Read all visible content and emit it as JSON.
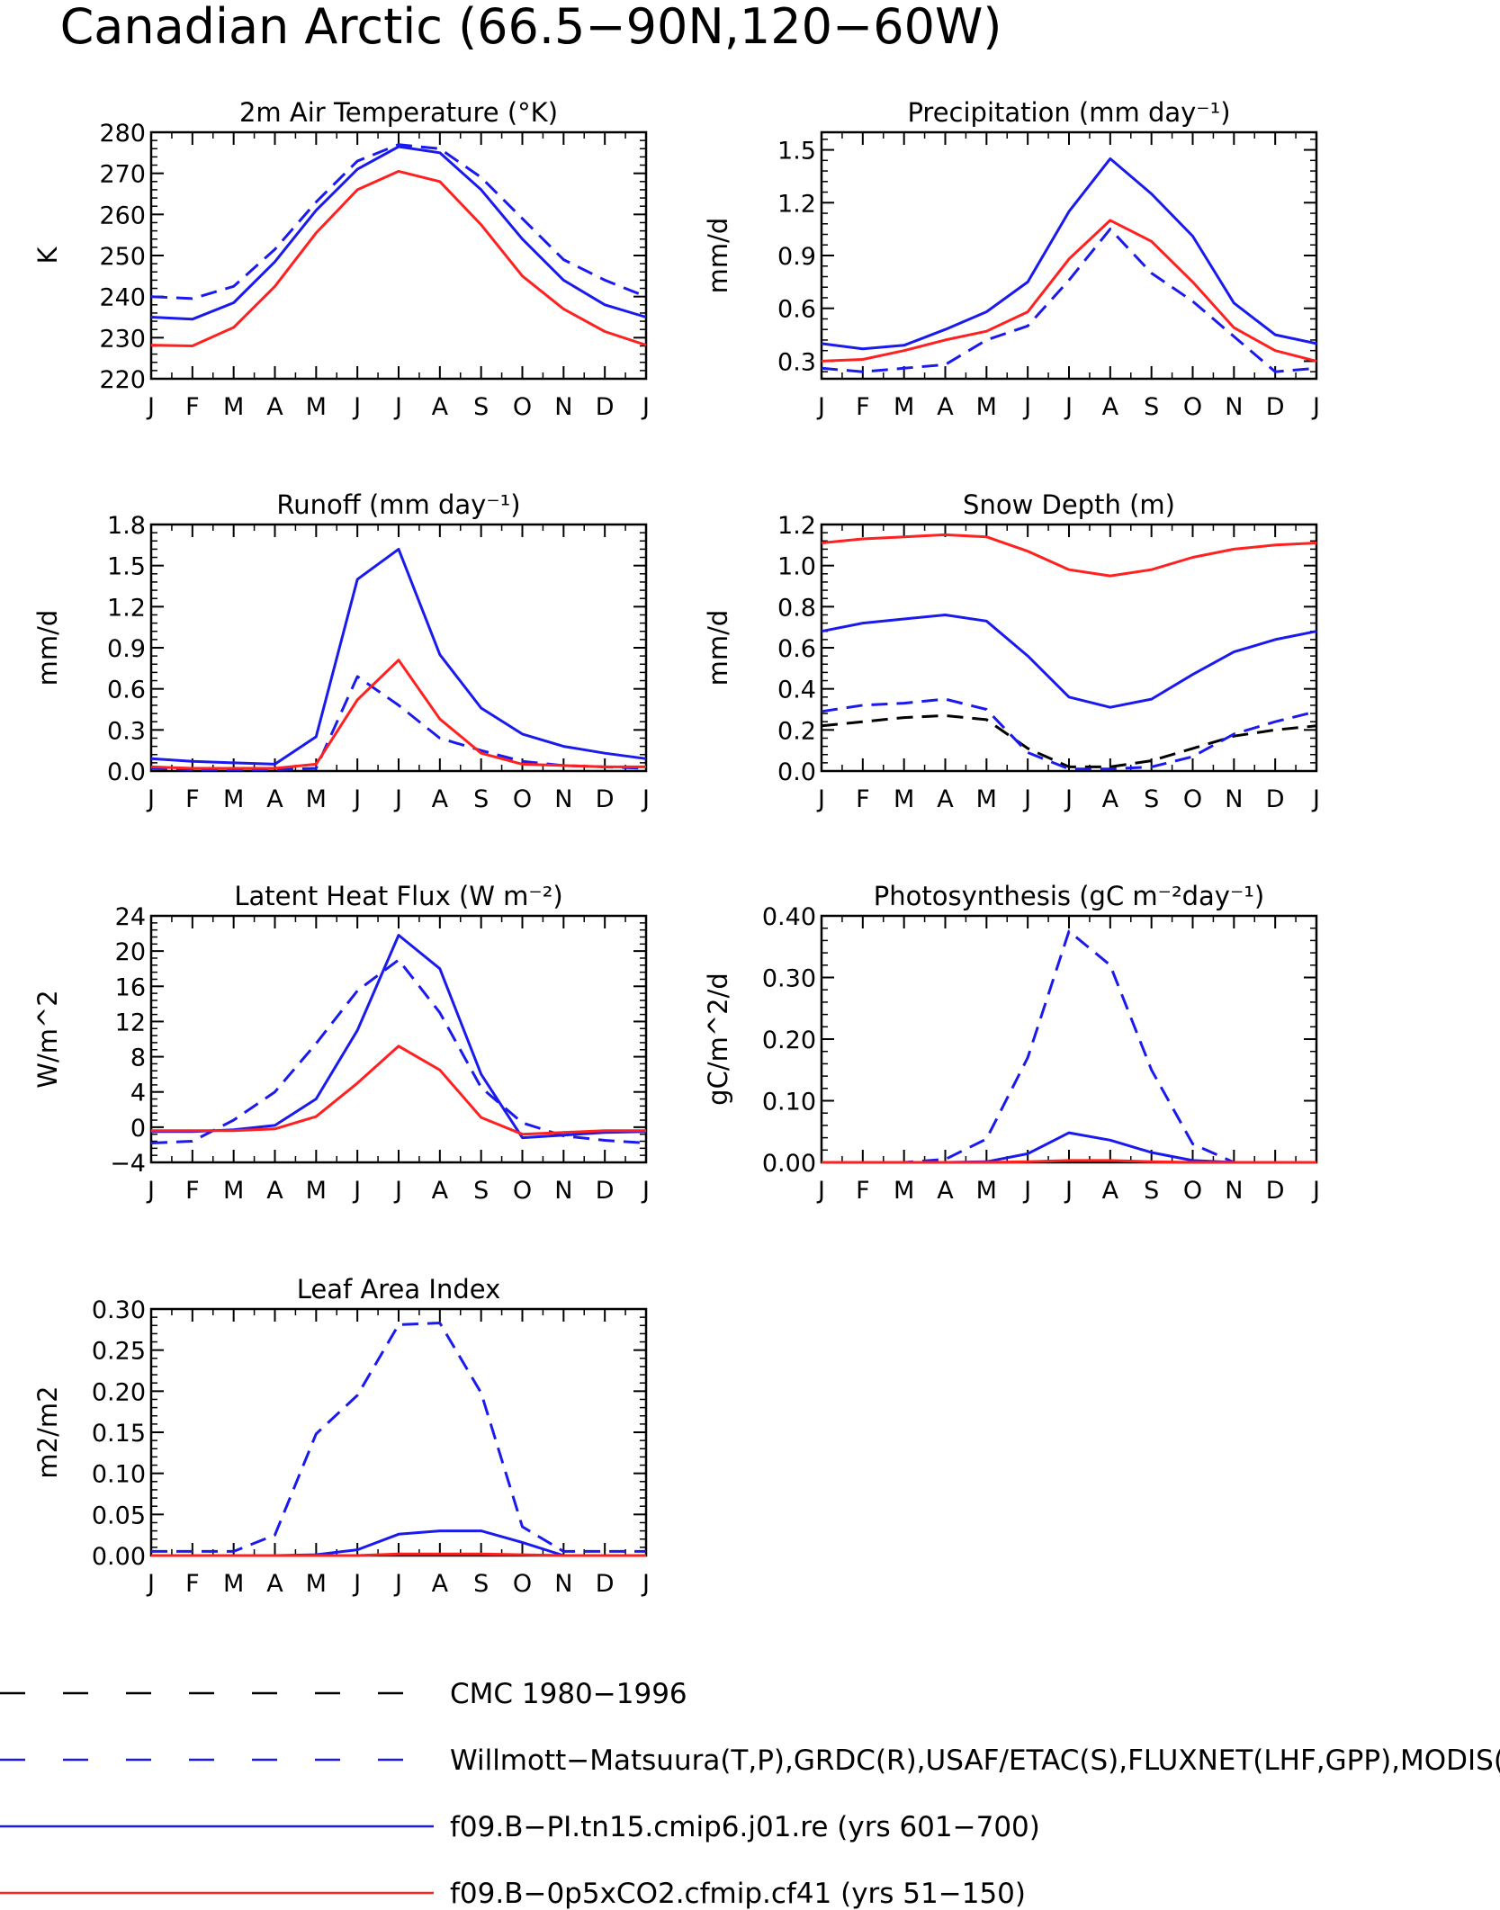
{
  "figure": {
    "title": "Canadian Arctic (66.5−90N,120−60W)"
  },
  "colors": {
    "red": "#ff2020",
    "blue": "#1a1aee",
    "black": "#000000"
  },
  "months": [
    "J",
    "F",
    "M",
    "A",
    "M",
    "J",
    "J",
    "A",
    "S",
    "O",
    "N",
    "D",
    "J"
  ],
  "legend": [
    {
      "label": "CMC 1980−1996",
      "color": "black",
      "dash": true
    },
    {
      "label": "Willmott−Matsuura(T,P),GRDC(R),USAF/ETAC(S),FLUXNET(LHF,GPP),MODIS(LAI)",
      "color": "blue",
      "dash": true
    },
    {
      "label": "f09.B−PI.tn15.cmip6.j01.re (yrs 601−700)",
      "color": "blue",
      "dash": false
    },
    {
      "label": "f09.B−0p5xCO2.cfmip.cf41 (yrs 51−150)",
      "color": "red",
      "dash": false
    }
  ],
  "chart_data": [
    {
      "type": "line",
      "title": "2m Air Temperature (°K)",
      "ylabel": "K",
      "ylim": [
        220,
        280
      ],
      "yticks": [
        "220",
        "230",
        "240",
        "250",
        "260",
        "270",
        "280"
      ],
      "series": [
        {
          "name": "Willmott−Matsuura(T,P),GRDC(R),USAF/ETAC(S),FLUXNET(LHF,GPP),MODIS(LAI)",
          "color": "blue",
          "dash": true,
          "values": [
            240,
            239.5,
            242.5,
            251.5,
            263,
            273,
            277,
            276,
            269,
            259,
            249,
            244,
            240
          ]
        },
        {
          "name": "f09.B−PI.tn15.cmip6.j01.re (yrs 601−700)",
          "color": "blue",
          "dash": false,
          "values": [
            235,
            234.5,
            238.5,
            248.5,
            261,
            271,
            276.5,
            275,
            266,
            254,
            244,
            238,
            235
          ]
        },
        {
          "name": "f09.B−0p5xCO2.cfmip.cf41 (yrs 51−150)",
          "color": "red",
          "dash": false,
          "values": [
            228.2,
            228,
            232.5,
            242.5,
            255.5,
            266,
            270.5,
            268,
            257.5,
            245,
            237,
            231.5,
            228.2
          ]
        }
      ]
    },
    {
      "type": "line",
      "title": "Precipitation (mm day⁻¹)",
      "ylabel": "mm/d",
      "ylim": [
        0.2,
        1.6
      ],
      "yticks": [
        "0.3",
        "0.6",
        "0.9",
        "1.2",
        "1.5"
      ],
      "ytickvals": [
        0.3,
        0.6,
        0.9,
        1.2,
        1.5
      ],
      "series": [
        {
          "name": "Willmott−Matsuura(T,P),GRDC(R),USAF/ETAC(S),FLUXNET(LHF,GPP),MODIS(LAI)",
          "color": "blue",
          "dash": true,
          "values": [
            0.26,
            0.24,
            0.26,
            0.28,
            0.42,
            0.5,
            0.76,
            1.05,
            0.8,
            0.64,
            0.44,
            0.24,
            0.26
          ]
        },
        {
          "name": "f09.B−PI.tn15.cmip6.j01.re (yrs 601−700)",
          "color": "blue",
          "dash": false,
          "values": [
            0.4,
            0.37,
            0.39,
            0.48,
            0.58,
            0.75,
            1.15,
            1.45,
            1.25,
            1.01,
            0.63,
            0.45,
            0.4
          ]
        },
        {
          "name": "f09.B−0p5xCO2.cfmip.cf41 (yrs 51−150)",
          "color": "red",
          "dash": false,
          "values": [
            0.3,
            0.31,
            0.36,
            0.42,
            0.47,
            0.58,
            0.88,
            1.1,
            0.98,
            0.75,
            0.49,
            0.36,
            0.3
          ]
        }
      ]
    },
    {
      "type": "line",
      "title": "Runoff (mm day⁻¹)",
      "ylabel": "mm/d",
      "ylim": [
        0,
        1.8
      ],
      "yticks": [
        "0.0",
        "0.3",
        "0.6",
        "0.9",
        "1.2",
        "1.5",
        "1.8"
      ],
      "series": [
        {
          "name": "Willmott−Matsuura(T,P),GRDC(R),USAF/ETAC(S),FLUXNET(LHF,GPP),MODIS(LAI)",
          "color": "blue",
          "dash": true,
          "values": [
            0.02,
            0.01,
            0.01,
            0.01,
            0.02,
            0.69,
            0.48,
            0.24,
            0.15,
            0.07,
            0.04,
            0.03,
            0.02
          ]
        },
        {
          "name": "f09.B−PI.tn15.cmip6.j01.re (yrs 601−700)",
          "color": "blue",
          "dash": false,
          "values": [
            0.09,
            0.07,
            0.06,
            0.05,
            0.25,
            1.4,
            1.62,
            0.85,
            0.46,
            0.27,
            0.18,
            0.13,
            0.09
          ]
        },
        {
          "name": "f09.B−0p5xCO2.cfmip.cf41 (yrs 51−150)",
          "color": "red",
          "dash": false,
          "values": [
            0.03,
            0.02,
            0.02,
            0.02,
            0.05,
            0.52,
            0.81,
            0.38,
            0.13,
            0.05,
            0.04,
            0.03,
            0.03
          ]
        }
      ]
    },
    {
      "type": "line",
      "title": "Snow Depth (m)",
      "ylabel": "mm/d",
      "ylim": [
        0,
        1.2
      ],
      "yticks": [
        "0.0",
        "0.2",
        "0.4",
        "0.6",
        "0.8",
        "1.0",
        "1.2"
      ],
      "series": [
        {
          "name": "CMC 1980−1996",
          "color": "black",
          "dash": true,
          "values": [
            0.22,
            0.24,
            0.26,
            0.27,
            0.25,
            0.11,
            0.02,
            0.02,
            0.05,
            0.11,
            0.17,
            0.2,
            0.22
          ]
        },
        {
          "name": "Willmott−Matsuura(T,P),GRDC(R),USAF/ETAC(S),FLUXNET(LHF,GPP),MODIS(LAI)",
          "color": "blue",
          "dash": true,
          "values": [
            0.29,
            0.32,
            0.33,
            0.35,
            0.3,
            0.09,
            0.01,
            0.01,
            0.02,
            0.07,
            0.18,
            0.24,
            0.29
          ]
        },
        {
          "name": "f09.B−PI.tn15.cmip6.j01.re (yrs 601−700)",
          "color": "blue",
          "dash": false,
          "values": [
            0.68,
            0.72,
            0.74,
            0.76,
            0.73,
            0.56,
            0.36,
            0.31,
            0.35,
            0.47,
            0.58,
            0.64,
            0.68
          ]
        },
        {
          "name": "f09.B−0p5xCO2.cfmip.cf41 (yrs 51−150)",
          "color": "red",
          "dash": false,
          "values": [
            1.11,
            1.13,
            1.14,
            1.15,
            1.14,
            1.07,
            0.98,
            0.95,
            0.98,
            1.04,
            1.08,
            1.1,
            1.11
          ]
        }
      ]
    },
    {
      "type": "line",
      "title": "Latent Heat Flux (W m⁻²)",
      "ylabel": "W/m^2",
      "ylim": [
        -4,
        24
      ],
      "yticks": [
        "−4",
        "0",
        "4",
        "8",
        "12",
        "16",
        "20",
        "24"
      ],
      "series": [
        {
          "name": "Willmott−Matsuura(T,P),GRDC(R),USAF/ETAC(S),FLUXNET(LHF,GPP),MODIS(LAI)",
          "color": "blue",
          "dash": true,
          "values": [
            -1.8,
            -1.6,
            0.8,
            4,
            9.5,
            15.5,
            19,
            13,
            4.5,
            0.5,
            -1,
            -1.5,
            -1.8
          ]
        },
        {
          "name": "f09.B−PI.tn15.cmip6.j01.re (yrs 601−700)",
          "color": "blue",
          "dash": false,
          "values": [
            -0.5,
            -0.5,
            -0.3,
            0.2,
            3.2,
            11,
            21.8,
            18,
            6,
            -1.2,
            -0.9,
            -0.6,
            -0.5
          ]
        },
        {
          "name": "f09.B−0p5xCO2.cfmip.cf41 (yrs 51−150)",
          "color": "red",
          "dash": false,
          "values": [
            -0.4,
            -0.4,
            -0.4,
            -0.2,
            1.2,
            5,
            9.2,
            6.5,
            1.1,
            -0.8,
            -0.6,
            -0.4,
            -0.4
          ]
        }
      ]
    },
    {
      "type": "line",
      "title": "Photosynthesis (gC m⁻²day⁻¹)",
      "ylabel": "gC/m^2/d",
      "ylim": [
        0,
        0.4
      ],
      "yticks": [
        "0.00",
        "0.10",
        "0.20",
        "0.30",
        "0.40"
      ],
      "series": [
        {
          "name": "Willmott−Matsuura(T,P),GRDC(R),USAF/ETAC(S),FLUXNET(LHF,GPP),MODIS(LAI)",
          "color": "blue",
          "dash": true,
          "values": [
            0,
            0,
            0,
            0.005,
            0.038,
            0.17,
            0.375,
            0.32,
            0.15,
            0.03,
            0,
            0,
            0
          ]
        },
        {
          "name": "f09.B−PI.tn15.cmip6.j01.re (yrs 601−700)",
          "color": "blue",
          "dash": false,
          "values": [
            0,
            0,
            0,
            0,
            0.001,
            0.014,
            0.048,
            0.036,
            0.016,
            0.003,
            0,
            0,
            0
          ]
        },
        {
          "name": "f09.B−0p5xCO2.cfmip.cf41 (yrs 51−150)",
          "color": "red",
          "dash": false,
          "values": [
            0,
            0,
            0,
            0,
            0,
            0.001,
            0.003,
            0.003,
            0.001,
            0,
            0,
            0,
            0
          ]
        }
      ]
    },
    {
      "type": "line",
      "title": "Leaf Area Index",
      "ylabel": "m2/m2",
      "ylim": [
        0,
        0.3
      ],
      "yticks": [
        "0.00",
        "0.05",
        "0.10",
        "0.15",
        "0.20",
        "0.25",
        "0.30"
      ],
      "series": [
        {
          "name": "Willmott−Matsuura(T,P),GRDC(R),USAF/ETAC(S),FLUXNET(LHF,GPP),MODIS(LAI)",
          "color": "blue",
          "dash": true,
          "values": [
            0.005,
            0.005,
            0.005,
            0.025,
            0.148,
            0.195,
            0.281,
            0.283,
            0.198,
            0.035,
            0.005,
            0.005,
            0.005
          ]
        },
        {
          "name": "f09.B−PI.tn15.cmip6.j01.re (yrs 601−700)",
          "color": "blue",
          "dash": false,
          "values": [
            0,
            0,
            0,
            0,
            0.001,
            0.007,
            0.026,
            0.03,
            0.03,
            0.016,
            0,
            0,
            0
          ]
        },
        {
          "name": "f09.B−0p5xCO2.cfmip.cf41 (yrs 51−150)",
          "color": "red",
          "dash": false,
          "values": [
            0,
            0,
            0,
            0,
            0,
            0,
            0.002,
            0.002,
            0.002,
            0.001,
            0,
            0,
            0
          ]
        }
      ]
    }
  ]
}
